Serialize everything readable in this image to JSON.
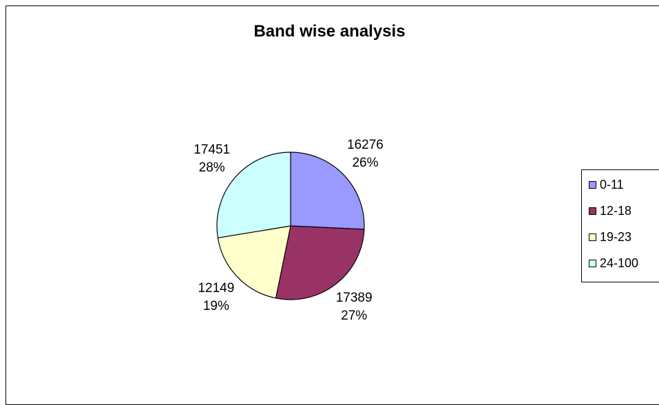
{
  "chart_data": {
    "type": "pie",
    "title": "Band wise analysis",
    "categories": [
      "0-11",
      "12-18",
      "19-23",
      "24-100"
    ],
    "values": [
      16276,
      17389,
      12149,
      17451
    ],
    "percent_labels": [
      "26%",
      "27%",
      "19%",
      "28%"
    ],
    "colors": [
      "#9999ff",
      "#993366",
      "#ffffcc",
      "#ccffff"
    ],
    "legend_position": "right",
    "start_angle_deg": 0,
    "direction": "clockwise"
  }
}
